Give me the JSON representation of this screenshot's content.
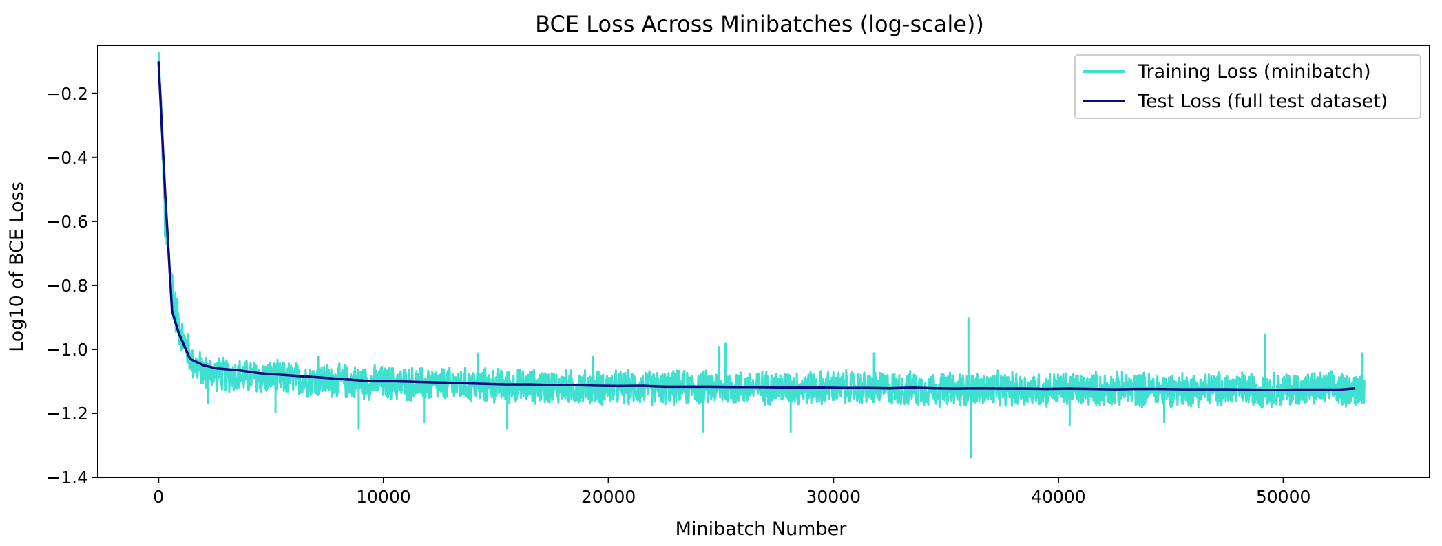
{
  "chart_data": {
    "type": "line",
    "title": "BCE Loss Across Minibatches (log-scale))",
    "xlabel": "Minibatch Number",
    "ylabel": "Log10 of BCE Loss",
    "xlim": [
      -2700,
      56500
    ],
    "ylim": [
      -1.4,
      -0.05
    ],
    "x_ticks": [
      0,
      10000,
      20000,
      30000,
      40000,
      50000
    ],
    "x_tick_labels": [
      "0",
      "10000",
      "20000",
      "30000",
      "40000",
      "50000"
    ],
    "y_ticks": [
      -1.4,
      -1.2,
      -1.0,
      -0.8,
      -0.6,
      -0.4,
      -0.2
    ],
    "y_tick_labels": [
      "−1.4",
      "−1.2",
      "−1.0",
      "−0.8",
      "−0.6",
      "−0.4",
      "−0.2"
    ],
    "grid": false,
    "legend_position": "top-right",
    "series": [
      {
        "name": "Training Loss (minibatch)",
        "color": "#40e0d0",
        "kind": "noisy-band",
        "x": [
          0,
          150,
          300,
          500,
          700,
          1000,
          1500,
          2000,
          3000,
          5000,
          8000,
          12000,
          16000,
          20000,
          25000,
          30000,
          35000,
          40000,
          45000,
          50000,
          53600
        ],
        "y_mean": [
          -0.07,
          -0.3,
          -0.62,
          -0.75,
          -0.86,
          -0.95,
          -1.04,
          -1.07,
          -1.08,
          -1.09,
          -1.1,
          -1.11,
          -1.115,
          -1.12,
          -1.12,
          -1.12,
          -1.125,
          -1.125,
          -1.125,
          -1.125,
          -1.125
        ],
        "y_spread": [
          0.0,
          0.06,
          0.12,
          0.1,
          0.08,
          0.07,
          0.06,
          0.06,
          0.06,
          0.06,
          0.06,
          0.06,
          0.06,
          0.06,
          0.06,
          0.06,
          0.06,
          0.06,
          0.06,
          0.06,
          0.06
        ],
        "spikes": [
          {
            "x": 2200,
            "y": -1.17
          },
          {
            "x": 5200,
            "y": -1.2
          },
          {
            "x": 7100,
            "y": -1.02
          },
          {
            "x": 8900,
            "y": -1.25
          },
          {
            "x": 11800,
            "y": -1.23
          },
          {
            "x": 14200,
            "y": -1.01
          },
          {
            "x": 15500,
            "y": -1.25
          },
          {
            "x": 19300,
            "y": -1.02
          },
          {
            "x": 24200,
            "y": -1.26
          },
          {
            "x": 24900,
            "y": -0.99
          },
          {
            "x": 25200,
            "y": -0.98
          },
          {
            "x": 28100,
            "y": -1.26
          },
          {
            "x": 31800,
            "y": -1.01
          },
          {
            "x": 36000,
            "y": -0.9
          },
          {
            "x": 36100,
            "y": -1.34
          },
          {
            "x": 40500,
            "y": -1.24
          },
          {
            "x": 44700,
            "y": -1.23
          },
          {
            "x": 49200,
            "y": -0.95
          },
          {
            "x": 53500,
            "y": -1.01
          }
        ]
      },
      {
        "name": "Test Loss (full test dataset)",
        "color": "#0b0b80",
        "kind": "line",
        "x": [
          0,
          300,
          600,
          900,
          1400,
          2000,
          2600,
          3500,
          4500,
          5500,
          6500,
          7500,
          8500,
          9500,
          10500,
          11500,
          12500,
          13500,
          14500,
          15500,
          16500,
          17500,
          18500,
          19500,
          20500,
          21500,
          22500,
          23500,
          24500,
          25500,
          26500,
          27500,
          28500,
          29500,
          30500,
          31500,
          32500,
          33500,
          34500,
          35500,
          36500,
          37500,
          38500,
          39500,
          40500,
          41500,
          42500,
          43500,
          44500,
          45500,
          46500,
          47500,
          48500,
          49500,
          50500,
          51500,
          52500,
          53200
        ],
        "y": [
          -0.1,
          -0.52,
          -0.88,
          -0.95,
          -1.03,
          -1.05,
          -1.06,
          -1.065,
          -1.075,
          -1.08,
          -1.085,
          -1.09,
          -1.095,
          -1.1,
          -1.1,
          -1.102,
          -1.104,
          -1.106,
          -1.108,
          -1.11,
          -1.11,
          -1.112,
          -1.112,
          -1.114,
          -1.115,
          -1.114,
          -1.117,
          -1.117,
          -1.117,
          -1.118,
          -1.118,
          -1.119,
          -1.12,
          -1.12,
          -1.121,
          -1.121,
          -1.122,
          -1.12,
          -1.122,
          -1.123,
          -1.122,
          -1.123,
          -1.123,
          -1.124,
          -1.123,
          -1.124,
          -1.125,
          -1.124,
          -1.124,
          -1.125,
          -1.125,
          -1.125,
          -1.126,
          -1.127,
          -1.126,
          -1.126,
          -1.126,
          -1.122
        ]
      }
    ]
  }
}
